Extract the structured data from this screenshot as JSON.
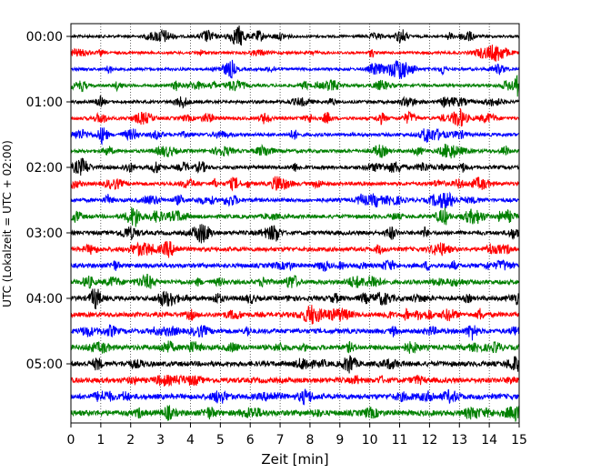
{
  "chart_data": {
    "type": "line",
    "title": "",
    "xlabel": "Zeit  [min]",
    "ylabel": "UTC (Lokalzeit = UTC + 02:00)",
    "xlim": [
      0,
      15
    ],
    "x_ticks": [
      "0",
      "1",
      "2",
      "3",
      "4",
      "5",
      "6",
      "7",
      "8",
      "9",
      "10",
      "11",
      "12",
      "13",
      "14",
      "15"
    ],
    "y_tick_labels": [
      "00:00",
      "01:00",
      "02:00",
      "03:00",
      "04:00",
      "05:00"
    ],
    "grid": "vertical dotted lines at every minute",
    "trace_interval_minutes": 15,
    "trace_colors": [
      "#000000",
      "#ff0000",
      "#0000ff",
      "#008000"
    ],
    "trace_count": 24,
    "traces": [
      {
        "start": "00:00",
        "color": "#000000"
      },
      {
        "start": "00:15",
        "color": "#ff0000"
      },
      {
        "start": "00:30",
        "color": "#0000ff"
      },
      {
        "start": "00:45",
        "color": "#008000"
      },
      {
        "start": "01:00",
        "color": "#000000"
      },
      {
        "start": "01:15",
        "color": "#ff0000"
      },
      {
        "start": "01:30",
        "color": "#0000ff"
      },
      {
        "start": "01:45",
        "color": "#008000"
      },
      {
        "start": "02:00",
        "color": "#000000"
      },
      {
        "start": "02:15",
        "color": "#ff0000"
      },
      {
        "start": "02:30",
        "color": "#0000ff"
      },
      {
        "start": "02:45",
        "color": "#008000"
      },
      {
        "start": "03:00",
        "color": "#000000"
      },
      {
        "start": "03:15",
        "color": "#ff0000"
      },
      {
        "start": "03:30",
        "color": "#0000ff"
      },
      {
        "start": "03:45",
        "color": "#008000"
      },
      {
        "start": "04:00",
        "color": "#000000"
      },
      {
        "start": "04:15",
        "color": "#ff0000"
      },
      {
        "start": "04:30",
        "color": "#0000ff"
      },
      {
        "start": "04:45",
        "color": "#008000"
      },
      {
        "start": "05:00",
        "color": "#000000"
      },
      {
        "start": "05:15",
        "color": "#ff0000"
      },
      {
        "start": "05:30",
        "color": "#0000ff"
      },
      {
        "start": "05:45",
        "color": "#008000"
      }
    ]
  }
}
